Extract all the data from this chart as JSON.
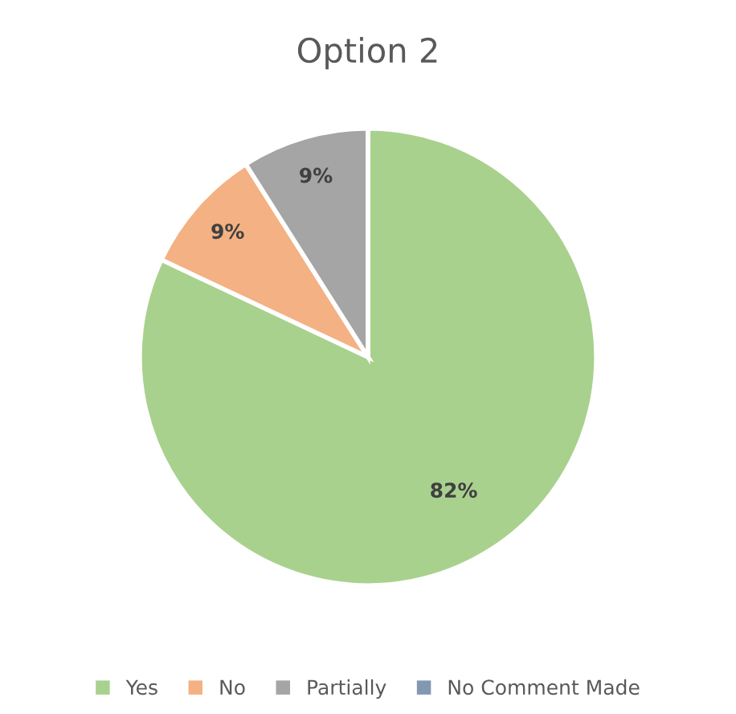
{
  "chart_data": {
    "type": "pie",
    "title": "Option 2",
    "categories": [
      "Yes",
      "No",
      "Partially",
      "No Comment Made"
    ],
    "values": [
      82,
      9,
      9,
      0
    ],
    "value_labels": [
      "82%",
      "9%",
      "9%",
      null
    ],
    "colors": [
      "#a9d18e",
      "#f4b183",
      "#a5a5a5",
      "#8497b0"
    ],
    "legend": "bottom"
  }
}
